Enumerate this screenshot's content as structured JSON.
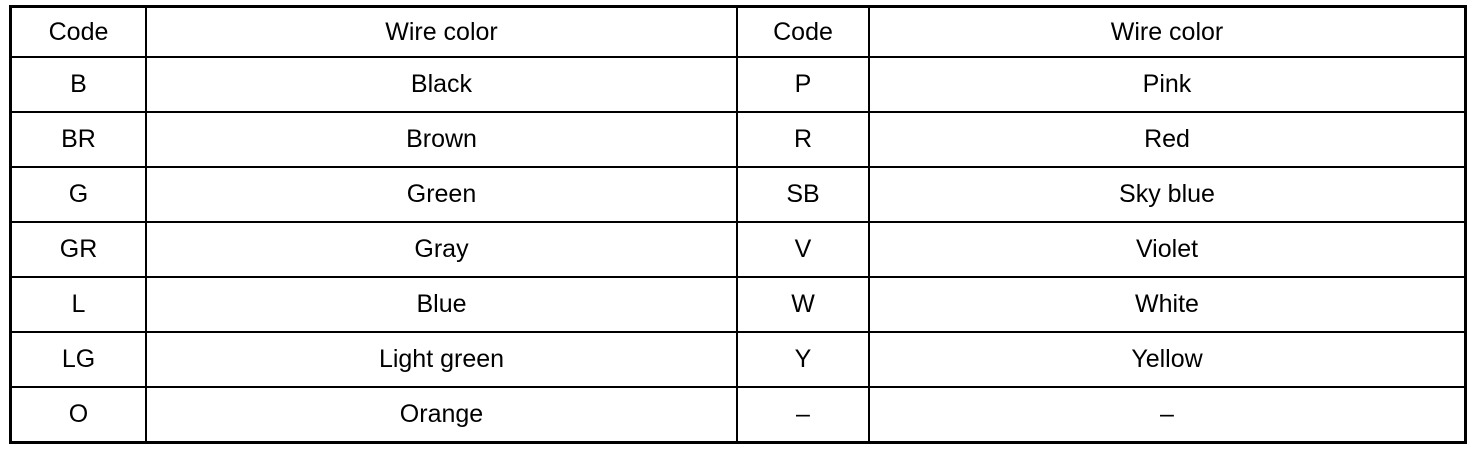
{
  "headers": [
    "Code",
    "Wire color",
    "Code",
    "Wire color"
  ],
  "rows": [
    [
      "B",
      "Black",
      "P",
      "Pink"
    ],
    [
      "BR",
      "Brown",
      "R",
      "Red"
    ],
    [
      "G",
      "Green",
      "SB",
      "Sky blue"
    ],
    [
      "GR",
      "Gray",
      "V",
      "Violet"
    ],
    [
      "L",
      "Blue",
      "W",
      "White"
    ],
    [
      "LG",
      "Light green",
      "Y",
      "Yellow"
    ],
    [
      "O",
      "Orange",
      "–",
      "–"
    ]
  ]
}
